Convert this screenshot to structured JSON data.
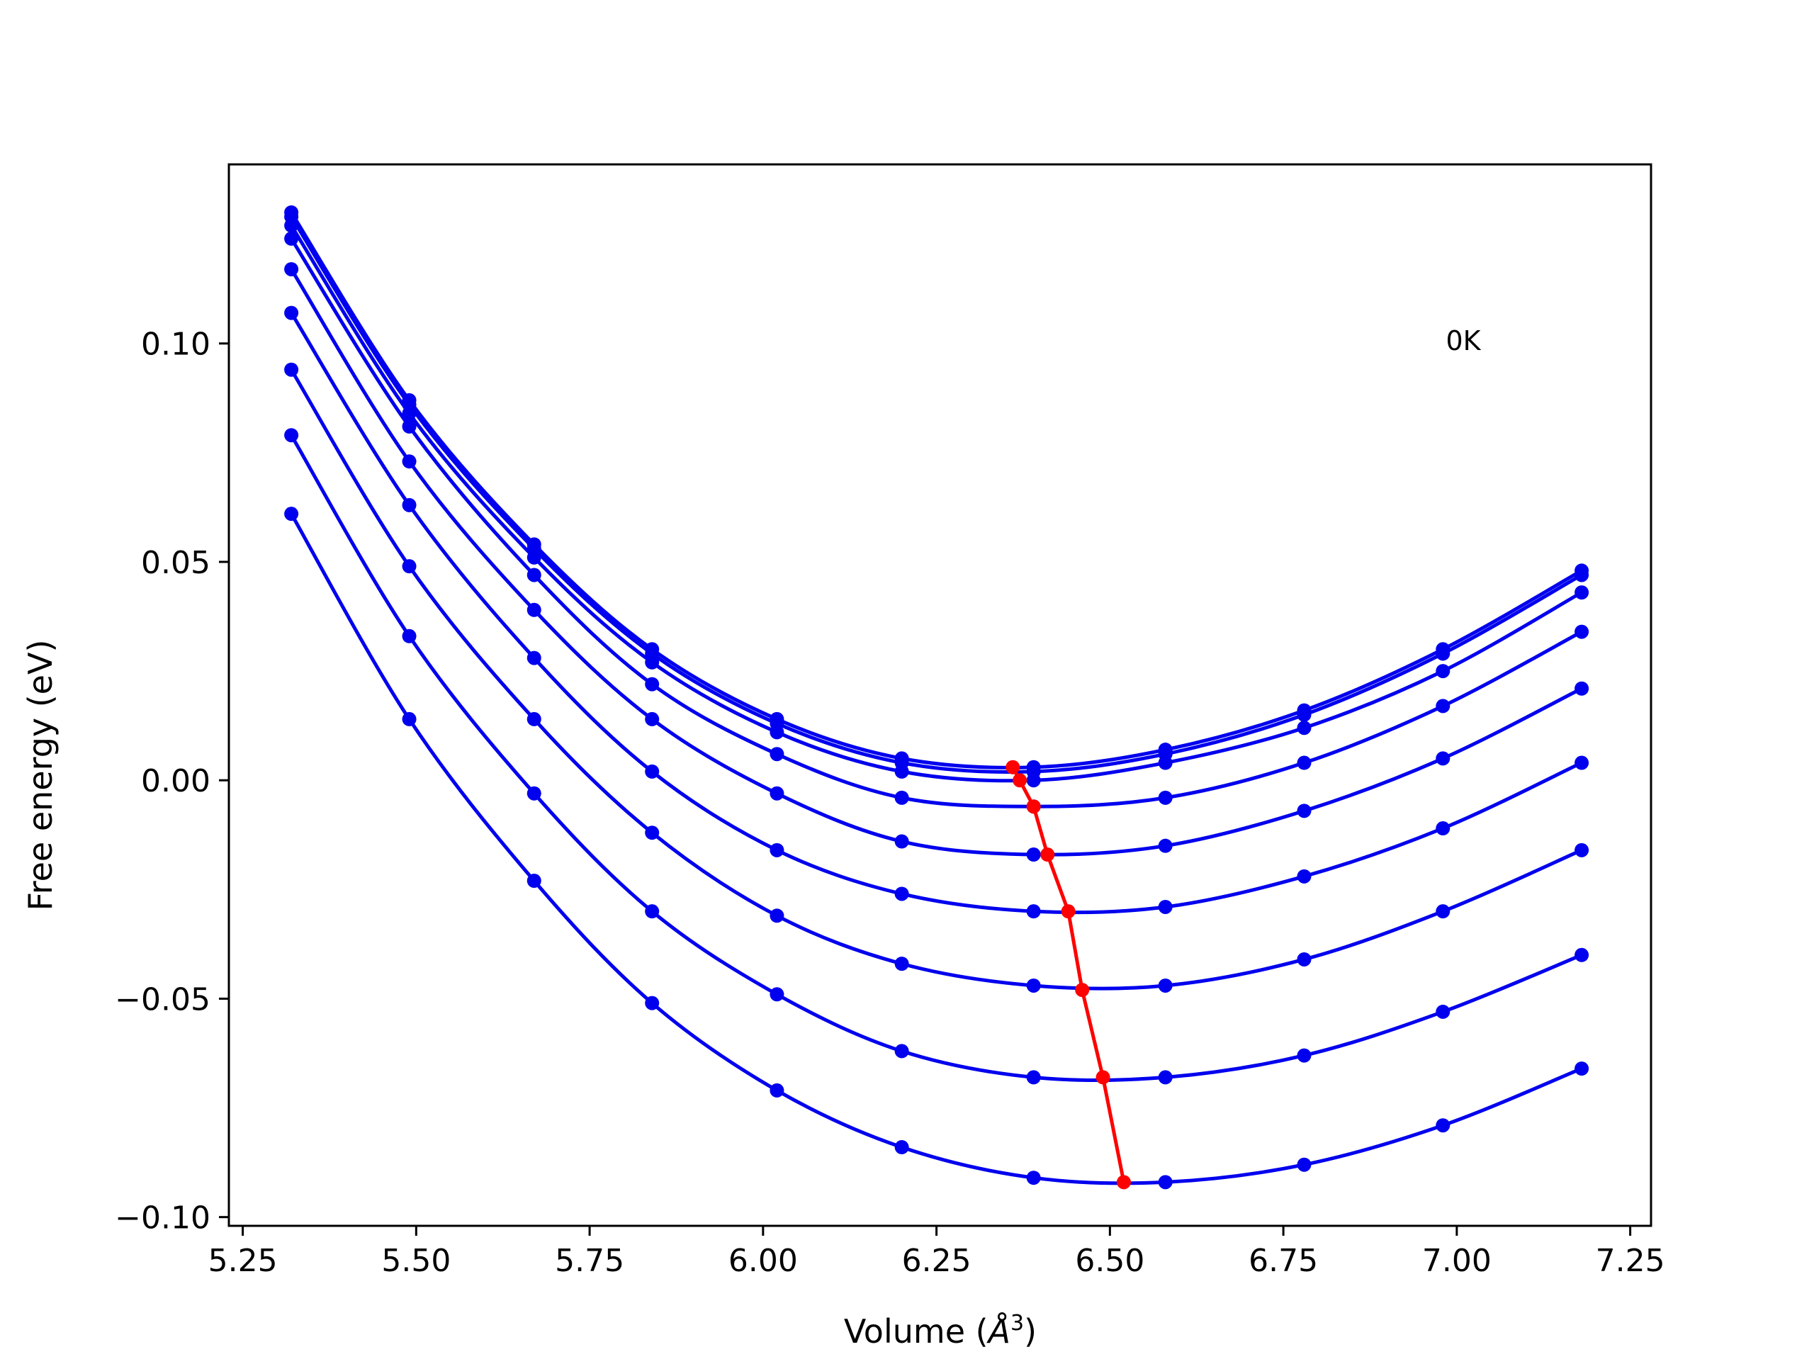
{
  "chart_data": {
    "type": "line",
    "title": "",
    "xlabel": "Volume (",
    "xlabel_unit_base": "Å",
    "xlabel_unit_exp": "3",
    "xlabel_close": ")",
    "ylabel": "Free energy (eV)",
    "xlim": [
      5.23,
      7.28
    ],
    "ylim": [
      -0.102,
      0.141
    ],
    "xticks": [
      5.25,
      5.5,
      5.75,
      6.0,
      6.25,
      6.5,
      6.75,
      7.0,
      7.25
    ],
    "xtick_labels": [
      "5.25",
      "5.50",
      "5.75",
      "6.00",
      "6.25",
      "6.50",
      "6.75",
      "7.00",
      "7.25"
    ],
    "yticks": [
      -0.1,
      -0.05,
      0.0,
      0.05,
      0.1
    ],
    "ytick_labels": [
      "−0.10",
      "−0.05",
      "0.00",
      "0.05",
      "0.10"
    ],
    "grid": false,
    "annotation": "0K",
    "curve_color": "#0000ee",
    "min_path_color": "#ff0000",
    "x": [
      5.32,
      5.49,
      5.67,
      5.84,
      6.02,
      6.2,
      6.39,
      6.58,
      6.78,
      6.98,
      7.18
    ],
    "series": [
      {
        "values": [
          0.13,
          0.087,
          0.054,
          0.03,
          0.014,
          0.005,
          0.003,
          0.007,
          0.016,
          0.03,
          0.048
        ]
      },
      {
        "values": [
          0.129,
          0.086,
          0.053,
          0.029,
          0.013,
          0.004,
          0.002,
          0.006,
          0.015,
          0.029,
          0.047
        ]
      },
      {
        "values": [
          0.127,
          0.084,
          0.051,
          0.027,
          0.011,
          0.002,
          0.0,
          0.004,
          0.012,
          0.025,
          0.043
        ]
      },
      {
        "values": [
          0.124,
          0.081,
          0.047,
          0.022,
          0.006,
          -0.004,
          -0.006,
          -0.004,
          0.004,
          0.017,
          0.034
        ]
      },
      {
        "values": [
          0.117,
          0.073,
          0.039,
          0.014,
          -0.003,
          -0.014,
          -0.017,
          -0.015,
          -0.007,
          0.005,
          0.021
        ]
      },
      {
        "values": [
          0.107,
          0.063,
          0.028,
          0.002,
          -0.016,
          -0.026,
          -0.03,
          -0.029,
          -0.022,
          -0.011,
          0.004
        ]
      },
      {
        "values": [
          0.094,
          0.049,
          0.014,
          -0.012,
          -0.031,
          -0.042,
          -0.047,
          -0.047,
          -0.041,
          -0.03,
          -0.016
        ]
      },
      {
        "values": [
          0.079,
          0.033,
          -0.003,
          -0.03,
          -0.049,
          -0.062,
          -0.068,
          -0.068,
          -0.063,
          -0.053,
          -0.04
        ]
      },
      {
        "values": [
          0.061,
          0.014,
          -0.023,
          -0.051,
          -0.071,
          -0.084,
          -0.091,
          -0.092,
          -0.088,
          -0.079,
          -0.066
        ]
      }
    ],
    "min_path": {
      "x": [
        6.36,
        6.37,
        6.39,
        6.41,
        6.44,
        6.46,
        6.49,
        6.52
      ],
      "y": [
        0.003,
        0.0,
        -0.006,
        -0.017,
        -0.03,
        -0.048,
        -0.068,
        -0.092
      ]
    }
  }
}
